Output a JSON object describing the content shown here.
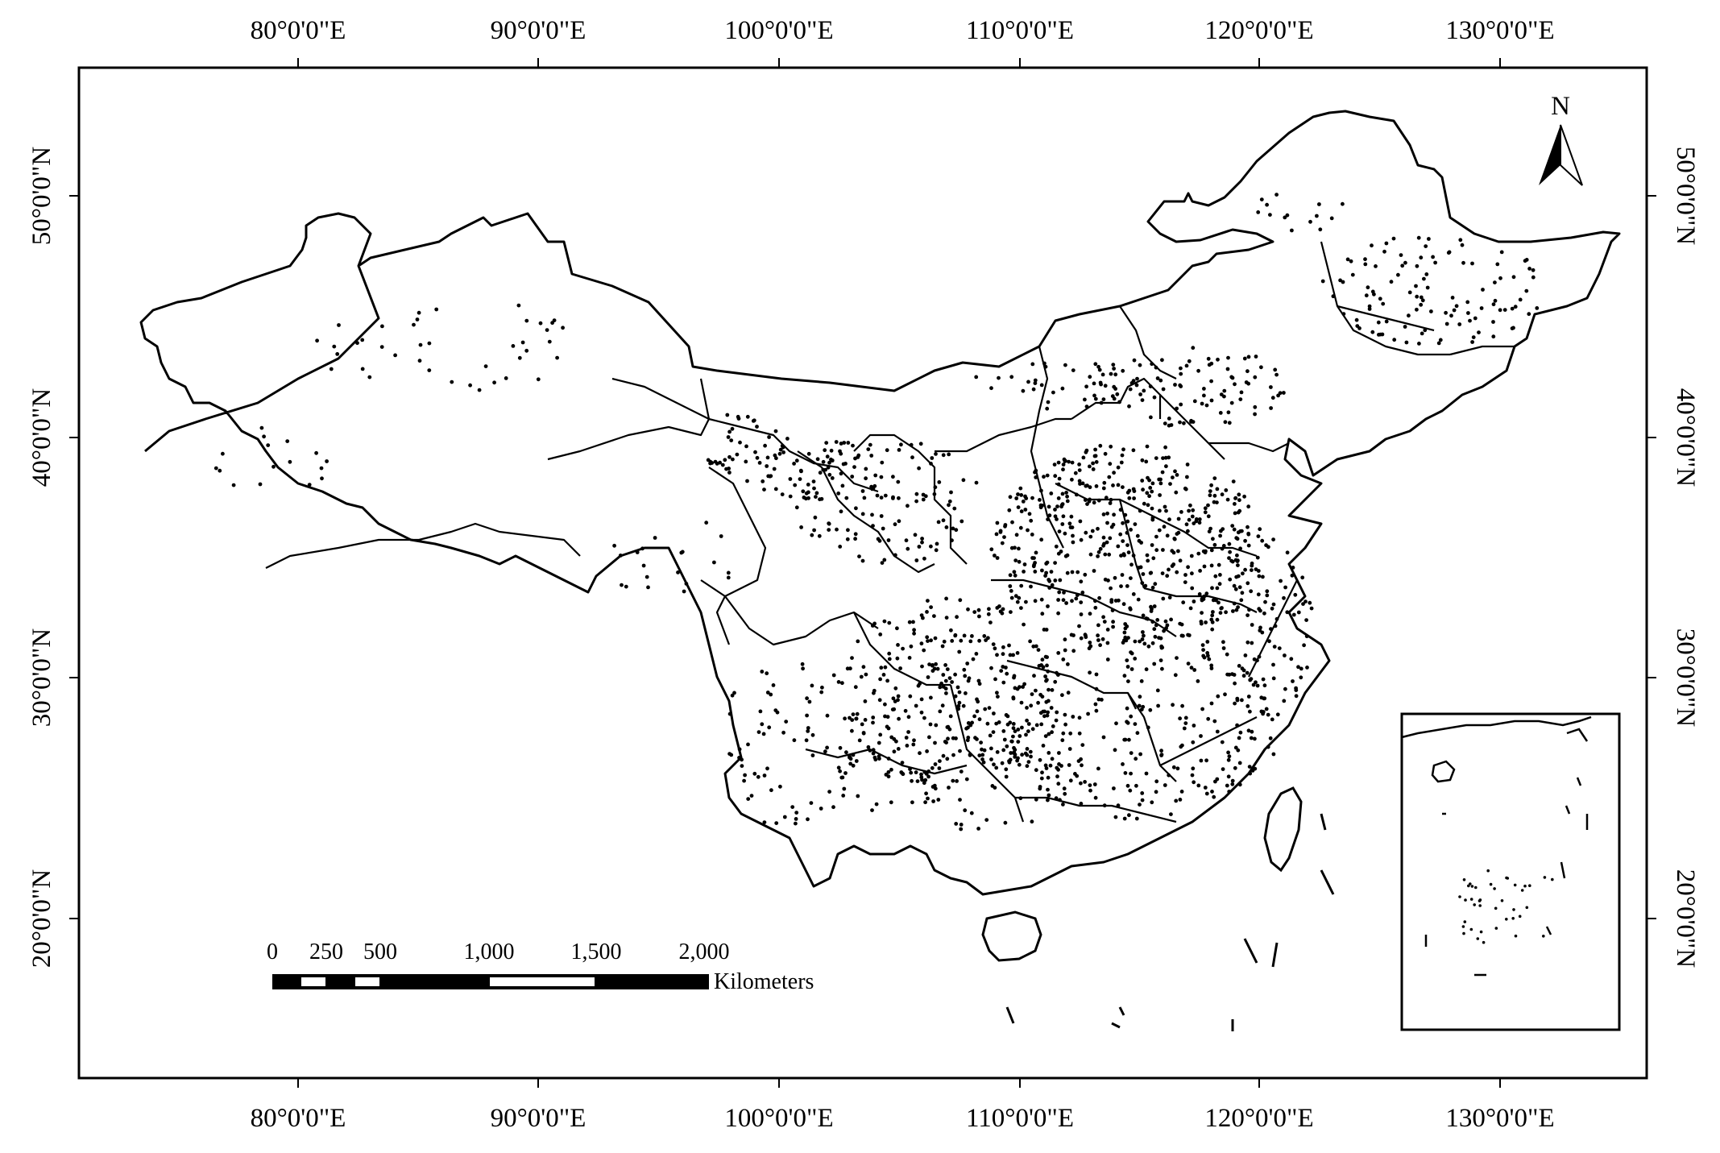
{
  "map": {
    "top_longitude_labels": [
      "80°0'0\"E",
      "90°0'0\"E",
      "100°0'0\"E",
      "110°0'0\"E",
      "120°0'0\"E",
      "130°0'0\"E"
    ],
    "bottom_longitude_labels": [
      "80°0'0\"E",
      "90°0'0\"E",
      "100°0'0\"E",
      "110°0'0\"E",
      "120°0'0\"E",
      "130°0'0\"E"
    ],
    "left_latitude_labels": [
      "50°0'0\"N",
      "40°0'0\"N",
      "30°0'0\"N",
      "20°0'0\"N"
    ],
    "right_latitude_labels": [
      "50°0'0\"N",
      "40°0'0\"N",
      "30°0'0\"N",
      "20°0'0\"N"
    ],
    "north_arrow": {
      "label": "N",
      "icon": "north-arrow-icon"
    },
    "scale_bar": {
      "ticks": [
        "0",
        "250",
        "500",
        "1,000",
        "1,500",
        "2,000"
      ],
      "unit": "Kilometers"
    },
    "inset": {
      "description_icon": "south-china-sea-inset"
    },
    "colors": {
      "line": "#000000",
      "background": "#ffffff",
      "points": "#000000"
    }
  }
}
